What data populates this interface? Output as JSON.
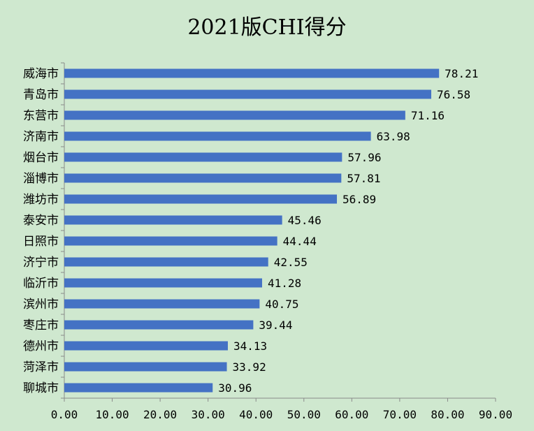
{
  "chart_data": {
    "type": "bar",
    "orientation": "horizontal",
    "title": "2021版CHI得分",
    "categories": [
      "威海市",
      "青岛市",
      "东营市",
      "济南市",
      "烟台市",
      "淄博市",
      "潍坊市",
      "泰安市",
      "日照市",
      "济宁市",
      "临沂市",
      "滨州市",
      "枣庄市",
      "德州市",
      "菏泽市",
      "聊城市"
    ],
    "values": [
      78.21,
      76.58,
      71.16,
      63.98,
      57.96,
      57.81,
      56.89,
      45.46,
      44.44,
      42.55,
      41.28,
      40.75,
      39.44,
      34.13,
      33.92,
      30.96
    ],
    "value_labels": [
      "78.21",
      "76.58",
      "71.16",
      "63.98",
      "57.96",
      "57.81",
      "56.89",
      "45.46",
      "44.44",
      "42.55",
      "41.28",
      "40.75",
      "39.44",
      "34.13",
      "33.92",
      "30.96"
    ],
    "xlim": [
      0,
      90
    ],
    "x_ticks": [
      0,
      10,
      20,
      30,
      40,
      50,
      60,
      70,
      80,
      90
    ],
    "x_tick_labels": [
      "0.00",
      "10.00",
      "20.00",
      "30.00",
      "40.00",
      "50.00",
      "60.00",
      "70.00",
      "80.00",
      "90.00"
    ],
    "xlabel": "",
    "ylabel": "",
    "grid": false,
    "legend": "none",
    "bar_color": "#4472c4",
    "background_color": "#cfe8cf"
  }
}
